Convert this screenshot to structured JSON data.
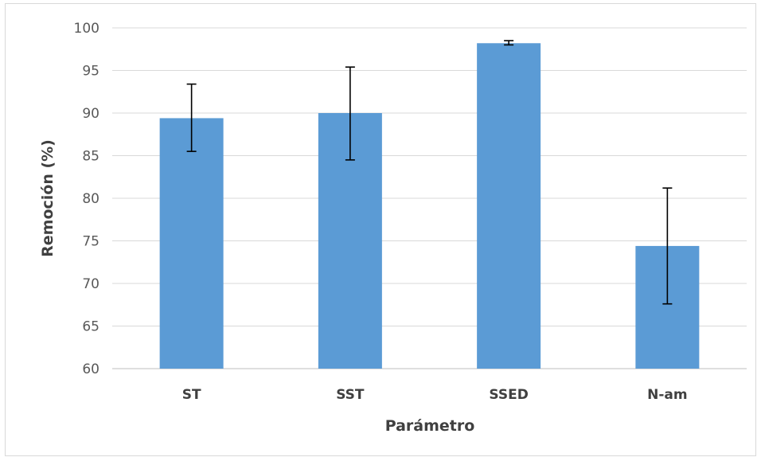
{
  "chart_data": {
    "type": "bar",
    "categories": [
      "ST",
      "SST",
      "SSED",
      "N-am"
    ],
    "values": [
      89.4,
      90.0,
      98.2,
      74.4
    ],
    "error_low": [
      85.5,
      84.5,
      98.0,
      67.6
    ],
    "error_high": [
      93.4,
      95.4,
      98.5,
      81.2
    ],
    "xlabel": "Parámetro",
    "ylabel": "Remoción (%)",
    "ylim": [
      60,
      100
    ],
    "yticks": [
      60,
      65,
      70,
      75,
      80,
      85,
      90,
      95,
      100
    ],
    "grid": true,
    "bar_color": "#5b9bd5",
    "legend": "none"
  }
}
